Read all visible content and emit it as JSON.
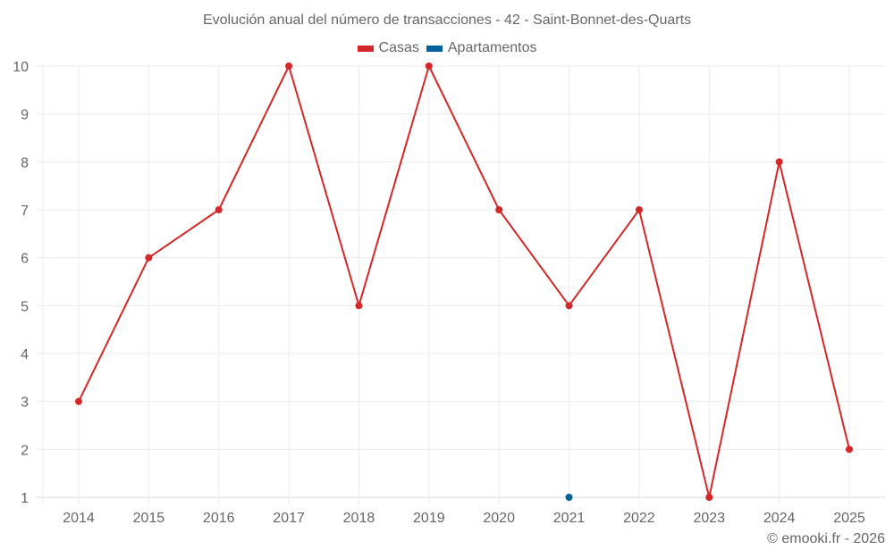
{
  "title": "Evolución anual del número de transacciones - 42 - Saint-Bonnet-des-Quarts",
  "legend": [
    {
      "label": "Casas",
      "color": "#d62728"
    },
    {
      "label": "Apartamentos",
      "color": "#00639e"
    }
  ],
  "credit": "© emooki.fr - 2026",
  "chart_data": {
    "type": "line",
    "title": "Evolución anual del número de transacciones - 42 - Saint-Bonnet-des-Quarts",
    "xlabel": "",
    "ylabel": "",
    "categories": [
      "2014",
      "2015",
      "2016",
      "2017",
      "2018",
      "2019",
      "2020",
      "2021",
      "2022",
      "2023",
      "2024",
      "2025"
    ],
    "series": [
      {
        "name": "Casas",
        "color": "#d62728",
        "values": [
          3,
          6,
          7,
          10,
          5,
          10,
          7,
          5,
          7,
          1,
          8,
          2
        ]
      },
      {
        "name": "Apartamentos",
        "color": "#00639e",
        "values": [
          null,
          null,
          null,
          null,
          null,
          null,
          null,
          1,
          null,
          null,
          null,
          null
        ]
      }
    ],
    "yticks": [
      1,
      2,
      3,
      4,
      5,
      6,
      7,
      8,
      9,
      10
    ],
    "ylim": [
      1,
      10
    ],
    "grid": true,
    "legend_position": "top-center"
  }
}
